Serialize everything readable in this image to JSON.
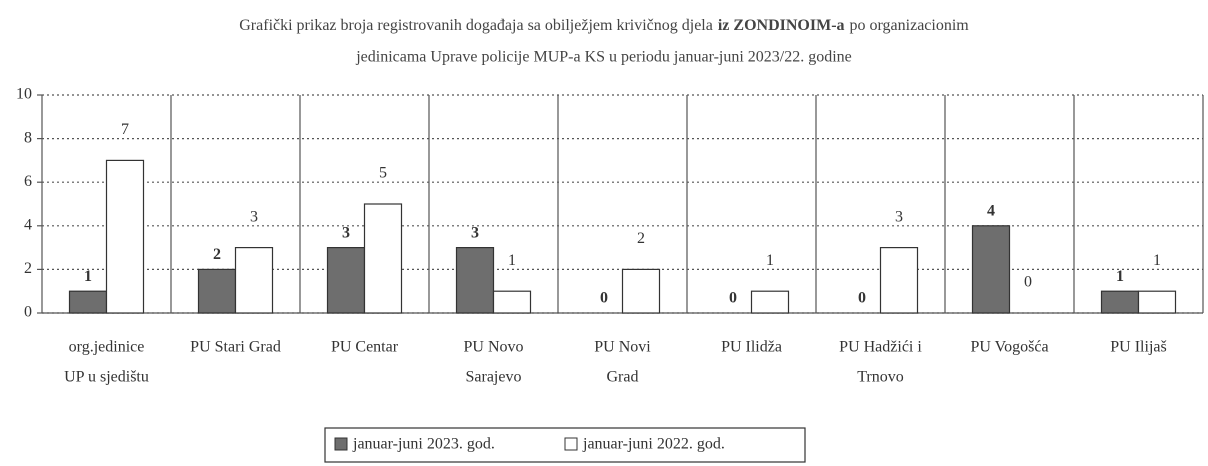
{
  "chart_data": {
    "type": "bar",
    "title": [
      [
        "Grafički prikaz broja registrovanih događaja sa obilježjem krivičnog djela",
        "iz ZONDINOIM-a",
        "po organizacionim"
      ],
      "jedinicama Uprave policije MUP-a KS u periodu januar-juni 2023/22. godine"
    ],
    "categories": [
      [
        "org.jedinice",
        "UP u sjedištu"
      ],
      [
        "PU Stari Grad"
      ],
      [
        "PU Centar"
      ],
      [
        "PU Novo",
        "Sarajevo"
      ],
      [
        "PU Novi",
        "Grad"
      ],
      [
        "PU Ilidža"
      ],
      [
        "PU Hadžići i",
        "Trnovo"
      ],
      [
        "PU Vogošća"
      ],
      [
        "PU Ilijaš"
      ]
    ],
    "series": [
      {
        "name": "januar-juni 2023. god.",
        "color": "#6e6e6e",
        "values": [
          1,
          2,
          3,
          3,
          0,
          0,
          0,
          4,
          1
        ]
      },
      {
        "name": "januar-juni 2022. god.",
        "color": "#ffffff",
        "values": [
          7,
          3,
          5,
          1,
          2,
          1,
          3,
          0,
          1
        ]
      }
    ],
    "ylim": [
      0,
      10
    ],
    "yticks": [
      0,
      2,
      4,
      6,
      8,
      10
    ],
    "grid": true,
    "legend": "bottom"
  }
}
